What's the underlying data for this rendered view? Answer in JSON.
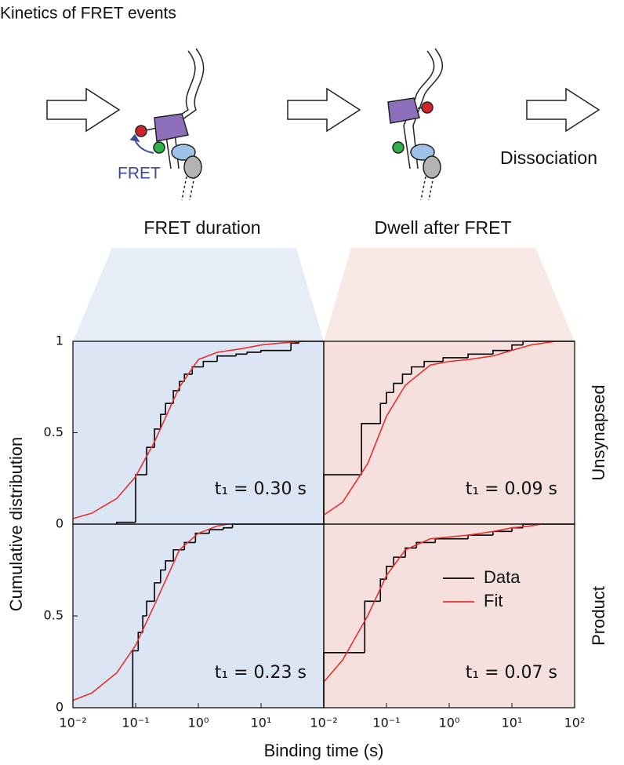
{
  "header": {
    "title": "Kinetics of FRET events"
  },
  "diagram": {
    "fret_label": "FRET",
    "dissociation": "Dissociation",
    "stages": [
      "FRET duration",
      "Dwell after FRET"
    ]
  },
  "x_label": "Binding time (s)",
  "y_label": "Cumulative distribution",
  "chart_data": [
    {
      "type": "step",
      "xscale": "log",
      "xlim": [
        0.01,
        100
      ],
      "ylim": [
        0,
        1
      ],
      "yticks": [
        0,
        0.5,
        1
      ],
      "background": "#dce5f3",
      "annotation": "t₁ = 0.30 s",
      "series": [
        {
          "style": "step",
          "color": "#000000",
          "x": [
            0.05,
            0.1,
            0.15,
            0.2,
            0.25,
            0.3,
            0.4,
            0.5,
            0.6,
            0.8,
            1.2,
            2,
            4,
            6,
            10,
            30,
            40
          ],
          "values": [
            0.01,
            0.27,
            0.42,
            0.52,
            0.6,
            0.66,
            0.73,
            0.78,
            0.82,
            0.86,
            0.89,
            0.92,
            0.93,
            0.94,
            0.95,
            0.99,
            1
          ]
        },
        {
          "style": "line",
          "color": "#e8312f",
          "x": [
            0.01,
            0.02,
            0.05,
            0.1,
            0.2,
            0.5,
            1,
            2,
            5,
            10,
            20,
            50
          ],
          "values": [
            0.03,
            0.06,
            0.14,
            0.26,
            0.45,
            0.75,
            0.9,
            0.94,
            0.96,
            0.98,
            0.99,
            1
          ]
        }
      ]
    },
    {
      "type": "step",
      "xscale": "log",
      "xlim": [
        0.01,
        100
      ],
      "ylim": [
        0,
        1
      ],
      "background": "#f5e0de",
      "annotation": "t₁ = 0.09 s",
      "row_label": "Unsynapsed",
      "series": [
        {
          "style": "step",
          "color": "#000000",
          "x": [
            0.01,
            0.04,
            0.08,
            0.1,
            0.13,
            0.18,
            0.25,
            0.4,
            0.8,
            2,
            5,
            10,
            15
          ],
          "values": [
            0.27,
            0.55,
            0.66,
            0.72,
            0.77,
            0.82,
            0.86,
            0.89,
            0.91,
            0.93,
            0.95,
            0.98,
            1
          ]
        },
        {
          "style": "line",
          "color": "#e8312f",
          "x": [
            0.01,
            0.02,
            0.05,
            0.1,
            0.2,
            0.5,
            1,
            2,
            5,
            10,
            20,
            50
          ],
          "values": [
            0.05,
            0.12,
            0.33,
            0.59,
            0.76,
            0.87,
            0.89,
            0.9,
            0.92,
            0.95,
            0.98,
            1
          ]
        }
      ]
    },
    {
      "type": "step",
      "xscale": "log",
      "xlim": [
        0.01,
        100
      ],
      "ylim": [
        0,
        1
      ],
      "xticks": [
        {
          "value": 0.01,
          "label": "10⁻²"
        },
        {
          "value": 0.1,
          "label": "10⁻¹"
        },
        {
          "value": 1,
          "label": "10⁰"
        },
        {
          "value": 10,
          "label": "10¹"
        }
      ],
      "yticks": [
        0,
        0.5
      ],
      "background": "#dce5f3",
      "annotation": "t₁ = 0.23 s",
      "series": [
        {
          "style": "step",
          "color": "#000000",
          "x": [
            0.09,
            0.11,
            0.13,
            0.15,
            0.2,
            0.25,
            0.3,
            0.4,
            0.6,
            0.9,
            1.5,
            2.5,
            3.5
          ],
          "values": [
            0.31,
            0.41,
            0.5,
            0.58,
            0.68,
            0.75,
            0.8,
            0.86,
            0.9,
            0.95,
            0.97,
            0.98,
            1
          ]
        },
        {
          "style": "line",
          "color": "#e8312f",
          "x": [
            0.01,
            0.02,
            0.05,
            0.1,
            0.2,
            0.5,
            1,
            2,
            3
          ],
          "values": [
            0.04,
            0.08,
            0.19,
            0.34,
            0.56,
            0.86,
            0.95,
            0.99,
            1
          ]
        }
      ]
    },
    {
      "type": "step",
      "xscale": "log",
      "xlim": [
        0.01,
        100
      ],
      "ylim": [
        0,
        1
      ],
      "xticks": [
        {
          "value": 0.01,
          "label": "10⁻²"
        },
        {
          "value": 0.1,
          "label": "10⁻¹"
        },
        {
          "value": 1,
          "label": "10⁰"
        },
        {
          "value": 10,
          "label": "10¹"
        },
        {
          "value": 100,
          "label": "10²"
        }
      ],
      "background": "#f5e0de",
      "annotation": "t₁ = 0.07 s",
      "row_label": "Product",
      "legend": "right",
      "series": [
        {
          "name": "Data",
          "style": "step",
          "color": "#000000",
          "x": [
            0.01,
            0.045,
            0.08,
            0.1,
            0.13,
            0.2,
            0.3,
            0.6,
            2,
            5,
            10,
            15
          ],
          "values": [
            0.3,
            0.58,
            0.7,
            0.77,
            0.82,
            0.87,
            0.9,
            0.92,
            0.94,
            0.96,
            0.98,
            1
          ]
        },
        {
          "name": "Fit",
          "style": "line",
          "color": "#e8312f",
          "x": [
            0.01,
            0.02,
            0.05,
            0.1,
            0.2,
            0.5,
            1,
            2,
            5,
            10,
            20,
            30
          ],
          "values": [
            0.14,
            0.26,
            0.5,
            0.72,
            0.86,
            0.92,
            0.93,
            0.94,
            0.96,
            0.98,
            0.99,
            1
          ]
        }
      ]
    }
  ]
}
